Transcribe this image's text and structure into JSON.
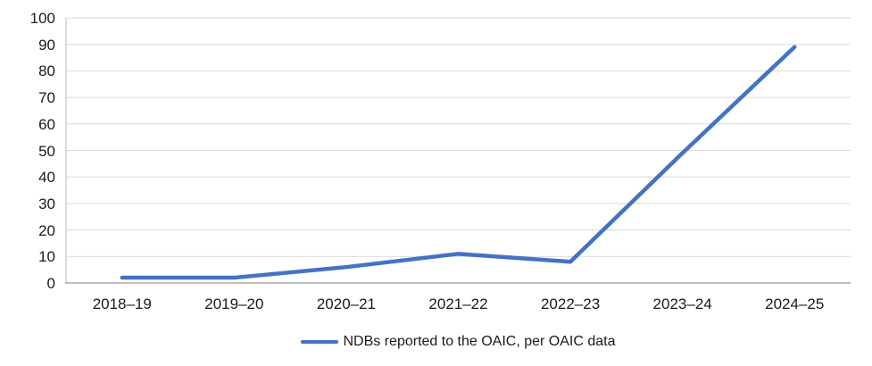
{
  "chart_data": {
    "type": "line",
    "title": "",
    "xlabel": "",
    "ylabel": "",
    "categories": [
      "2018–19",
      "2019–20",
      "2020–21",
      "2021–22",
      "2022–23",
      "2023–24",
      "2024–25"
    ],
    "series": [
      {
        "name": "NDBs reported to the OAIC, per OAIC data",
        "values": [
          2,
          2,
          6,
          11,
          8,
          49,
          89
        ]
      }
    ],
    "ylim": [
      0,
      100
    ],
    "yticks": [
      0,
      10,
      20,
      30,
      40,
      50,
      60,
      70,
      80,
      90,
      100
    ],
    "grid": "horizontal",
    "legend_position": "bottom"
  },
  "legend": {
    "marker": "line-swatch"
  },
  "colors": {
    "series_line": "#4472C4",
    "gridline": "#D9D9D9",
    "axis_line": "#BFBFBF",
    "bottom_axis_line": "#ACACAC",
    "text": "#1a1a1a",
    "background": "#ffffff"
  }
}
